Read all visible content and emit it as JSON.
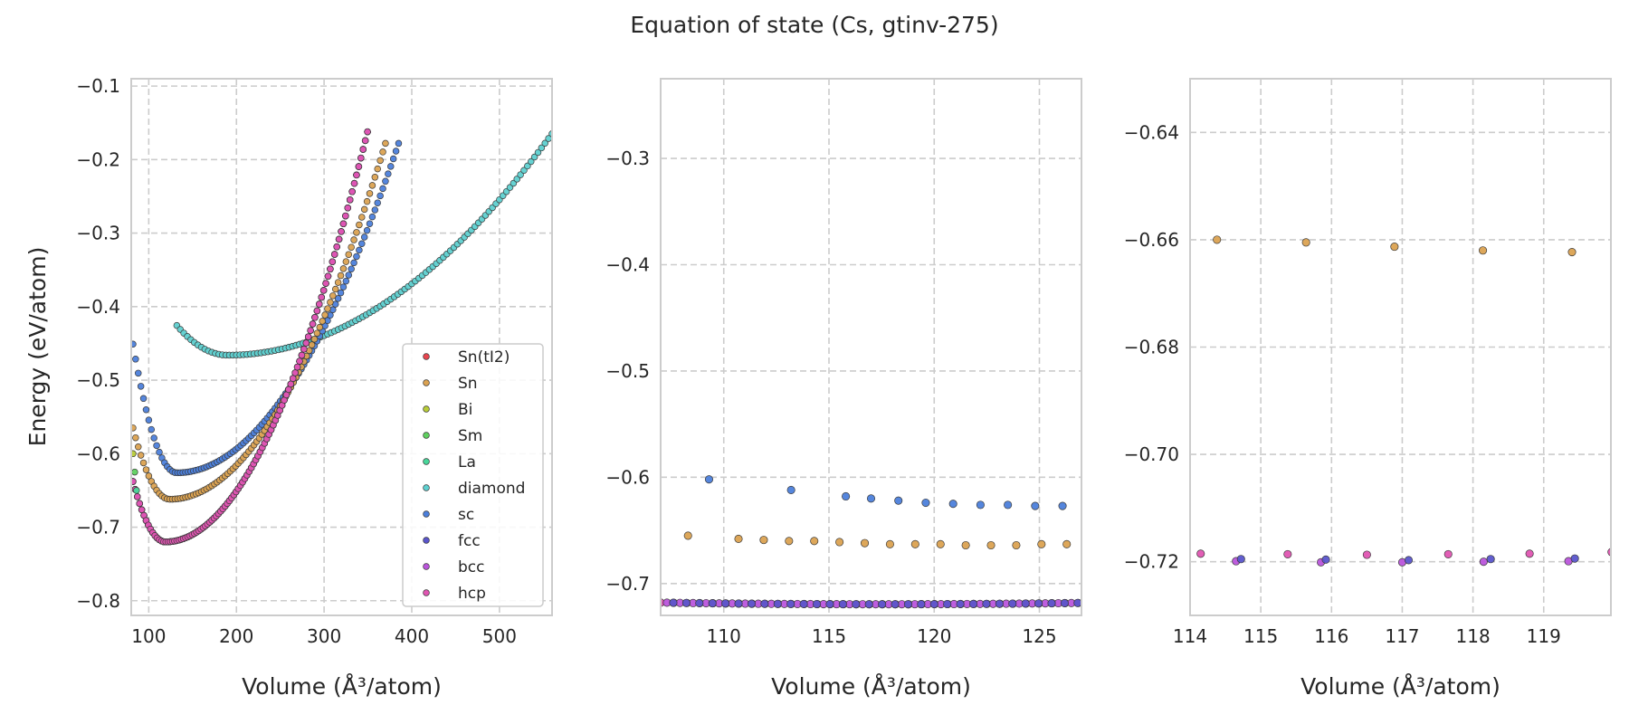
{
  "title": "Equation of state (Cs, gtinv-275)",
  "colors": {
    "Sn(tI2)": "#e8454f",
    "Sn": "#dba251",
    "Bi": "#b8cc38",
    "Sm": "#5fd05f",
    "La": "#48d79a",
    "diamond": "#5ed0d0",
    "sc": "#4c7fdb",
    "fcc": "#5a55cc",
    "bcc": "#bb55dc",
    "hcp": "#e055b2"
  },
  "chart_data": [
    {
      "type": "scatter",
      "panel": "left",
      "xlabel": "Volume (Å³/atom)",
      "ylabel": "Energy (eV/atom)",
      "xlim": [
        80,
        560
      ],
      "ylim": [
        -0.82,
        -0.09
      ],
      "xticks": [
        "100",
        "200",
        "300",
        "400",
        "500"
      ],
      "yticks": [
        "−0.1",
        "−0.2",
        "−0.3",
        "−0.4",
        "−0.5",
        "−0.6",
        "−0.7",
        "−0.8"
      ],
      "legend_position": "lower-right",
      "grid": true,
      "legend": [
        "Sn(tI2)",
        "Sn",
        "Bi",
        "Sm",
        "La",
        "diamond",
        "sc",
        "fcc",
        "bcc",
        "hcp"
      ],
      "series": [
        {
          "name": "diamond",
          "v0": 190,
          "e0": -0.466,
          "x_range": [
            132,
            560
          ],
          "step": 4.0,
          "curvature_left": 1.2e-05,
          "curvature_right": 2.2e-06
        },
        {
          "name": "sc",
          "v0": 132,
          "e0": -0.626,
          "x_range": [
            82,
            385
          ],
          "step": 3.0,
          "curvature_left": 7e-05,
          "curvature_right": 7e-06
        },
        {
          "name": "Sn",
          "v0": 124,
          "e0": -0.662,
          "x_range": [
            82,
            370
          ],
          "step": 3.0,
          "curvature_left": 5.5e-05,
          "curvature_right": 8e-06
        },
        {
          "name": "Sn(tI2)",
          "v0": 119,
          "e0": -0.72,
          "x_range": [
            82,
            350
          ],
          "step": 2.5,
          "curvature_left": 6e-05,
          "curvature_right": 1.05e-05
        },
        {
          "name": "fcc",
          "v0": 119,
          "e0": -0.72,
          "x_range": [
            82,
            350
          ],
          "step": 2.5,
          "curvature_left": 6e-05,
          "curvature_right": 1.05e-05
        },
        {
          "name": "bcc",
          "v0": 119,
          "e0": -0.72,
          "x_range": [
            82,
            350
          ],
          "step": 2.5,
          "curvature_left": 6e-05,
          "curvature_right": 1.05e-05
        },
        {
          "name": "hcp",
          "v0": 119,
          "e0": -0.72,
          "x_range": [
            82,
            350
          ],
          "step": 2.5,
          "curvature_left": 6e-05,
          "curvature_right": 1.05e-05
        },
        {
          "name": "Bi",
          "points": [
            [
              82,
              -0.6
            ]
          ]
        },
        {
          "name": "Sm",
          "points": [
            [
              84,
              -0.625
            ]
          ]
        },
        {
          "name": "La",
          "points": [
            [
              86,
              -0.65
            ]
          ]
        }
      ]
    },
    {
      "type": "scatter",
      "panel": "middle",
      "xlabel": "Volume (Å³/atom)",
      "xlim": [
        107,
        127
      ],
      "ylim": [
        -0.73,
        -0.225
      ],
      "xticks": [
        "110",
        "115",
        "120",
        "125"
      ],
      "yticks": [
        "−0.3",
        "−0.4",
        "−0.5",
        "−0.6",
        "−0.7"
      ],
      "grid": true,
      "series": [
        {
          "name": "sc",
          "points": [
            [
              109.3,
              -0.602
            ],
            [
              113.2,
              -0.612
            ],
            [
              115.8,
              -0.618
            ],
            [
              117.0,
              -0.62
            ],
            [
              118.3,
              -0.622
            ],
            [
              119.6,
              -0.624
            ],
            [
              120.9,
              -0.625
            ],
            [
              122.2,
              -0.626
            ],
            [
              123.5,
              -0.626
            ],
            [
              124.8,
              -0.627
            ],
            [
              126.1,
              -0.627
            ]
          ]
        },
        {
          "name": "Sn",
          "points": [
            [
              108.3,
              -0.655
            ],
            [
              110.7,
              -0.658
            ],
            [
              111.9,
              -0.659
            ],
            [
              113.1,
              -0.66
            ],
            [
              114.3,
              -0.66
            ],
            [
              115.5,
              -0.661
            ],
            [
              116.7,
              -0.662
            ],
            [
              117.9,
              -0.663
            ],
            [
              119.1,
              -0.663
            ],
            [
              120.3,
              -0.663
            ],
            [
              121.5,
              -0.664
            ],
            [
              122.7,
              -0.664
            ],
            [
              123.9,
              -0.664
            ],
            [
              125.1,
              -0.663
            ],
            [
              126.3,
              -0.663
            ]
          ]
        },
        {
          "name": "hcp",
          "x_range": [
            107.0,
            127.0
          ],
          "step": 0.62,
          "v0": 117.5,
          "e0": -0.7195,
          "curvature": 1.4e-05
        },
        {
          "name": "bcc",
          "x_range": [
            107.3,
            127.0
          ],
          "step": 0.62,
          "v0": 117.5,
          "e0": -0.7195,
          "curvature": 1.4e-05
        },
        {
          "name": "fcc",
          "x_range": [
            107.6,
            127.0
          ],
          "step": 0.62,
          "v0": 117.5,
          "e0": -0.7195,
          "curvature": 1.4e-05
        }
      ]
    },
    {
      "type": "scatter",
      "panel": "right",
      "xlabel": "Volume (Å³/atom)",
      "xlim": [
        114.0,
        119.95
      ],
      "ylim": [
        -0.73,
        -0.63
      ],
      "xticks": [
        "114",
        "115",
        "116",
        "117",
        "118",
        "119"
      ],
      "yticks": [
        "−0.64",
        "−0.66",
        "−0.68",
        "−0.70",
        "−0.72"
      ],
      "grid": true,
      "series": [
        {
          "name": "Sn",
          "points": [
            [
              114.38,
              -0.66
            ],
            [
              115.64,
              -0.6605
            ],
            [
              116.89,
              -0.6613
            ],
            [
              118.14,
              -0.662
            ],
            [
              119.4,
              -0.6623
            ]
          ]
        },
        {
          "name": "hcp",
          "points": [
            [
              114.15,
              -0.7185
            ],
            [
              115.38,
              -0.7186
            ],
            [
              116.5,
              -0.7187
            ],
            [
              117.65,
              -0.7186
            ],
            [
              118.8,
              -0.7185
            ],
            [
              119.96,
              -0.7182
            ]
          ]
        },
        {
          "name": "bcc",
          "points": [
            [
              114.65,
              -0.7199
            ],
            [
              115.85,
              -0.7201
            ],
            [
              117.0,
              -0.7201
            ],
            [
              118.15,
              -0.72
            ],
            [
              119.35,
              -0.7199
            ]
          ]
        },
        {
          "name": "fcc",
          "points": [
            [
              114.72,
              -0.7195
            ],
            [
              115.92,
              -0.7196
            ],
            [
              117.09,
              -0.7197
            ],
            [
              118.25,
              -0.7195
            ],
            [
              119.44,
              -0.7194
            ]
          ]
        }
      ]
    }
  ]
}
